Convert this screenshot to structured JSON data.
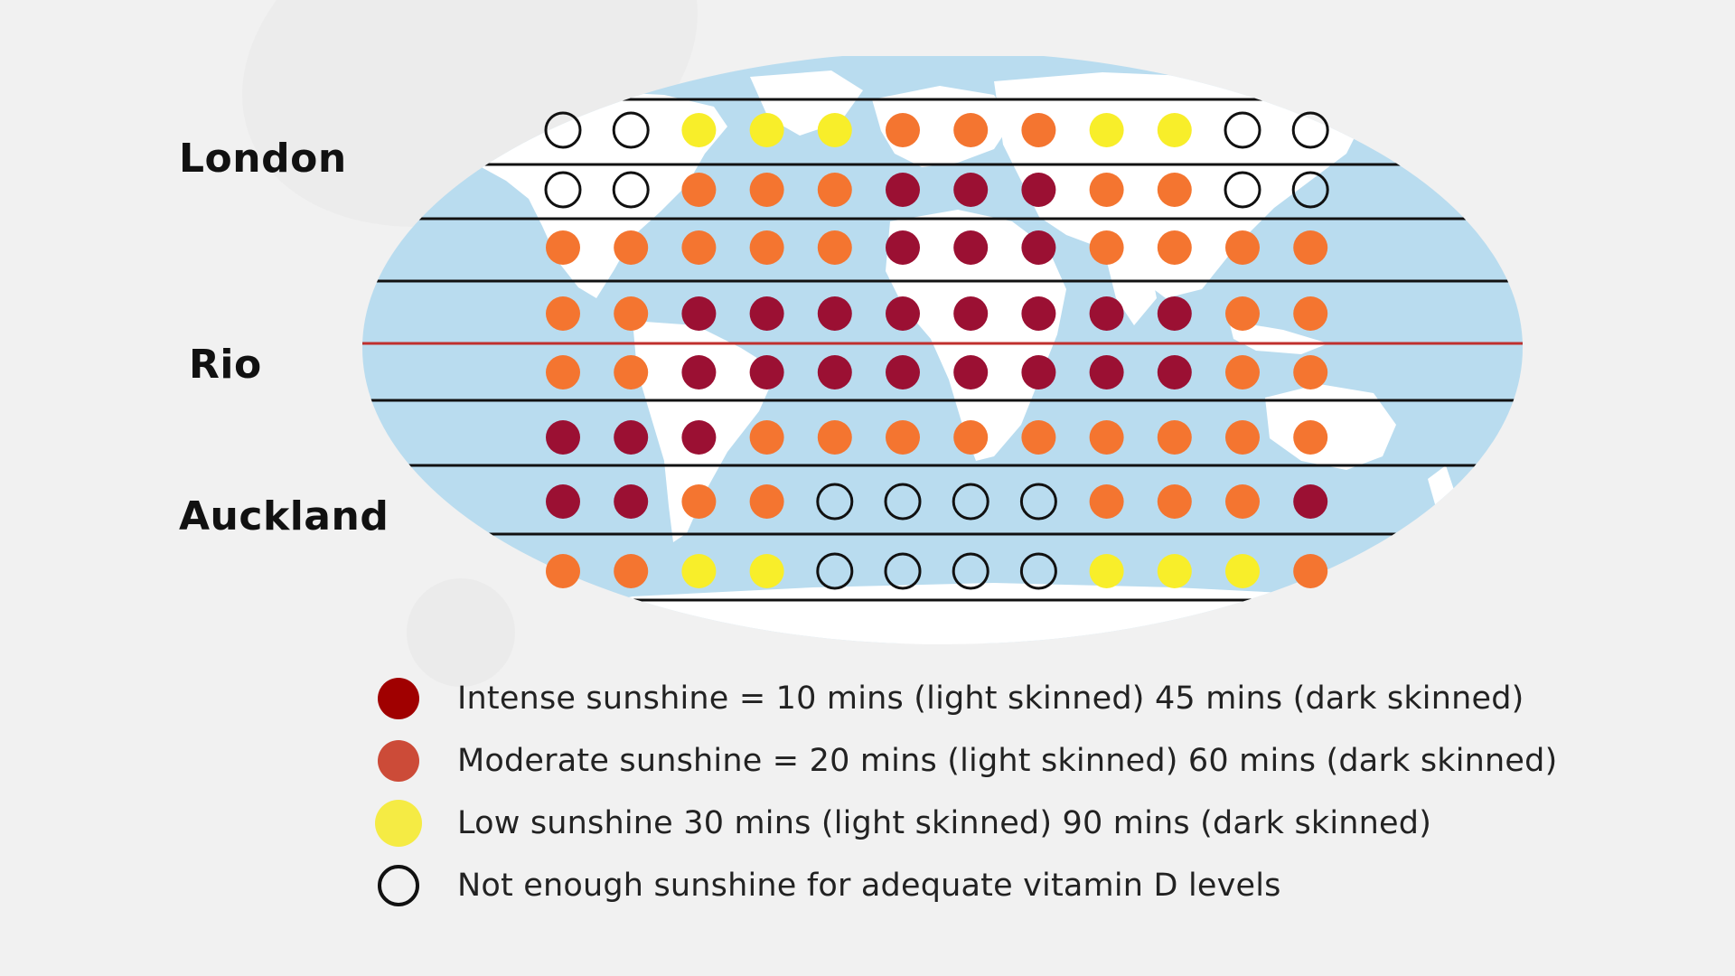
{
  "cities": {
    "london": "London",
    "rio": "Rio",
    "auckland": "Auckland"
  },
  "colors": {
    "intense": "#9b1033",
    "moderate": "#f47530",
    "low": "#f8ee2a",
    "none": "none",
    "ocean": "#b9dcef",
    "land": "#ffffff",
    "band_line": "#111111",
    "equator": "#c0302e",
    "legend_intense": "#a00000",
    "legend_moderate": "#cc4b38",
    "legend_low": "#f5eb44"
  },
  "grid": {
    "columns": 12,
    "rows": [
      [
        "N",
        "N",
        "L",
        "L",
        "L",
        "M",
        "M",
        "M",
        "L",
        "L",
        "N",
        "N"
      ],
      [
        "N",
        "N",
        "M",
        "M",
        "M",
        "I",
        "I",
        "I",
        "M",
        "M",
        "N",
        "N"
      ],
      [
        "M",
        "M",
        "M",
        "M",
        "M",
        "I",
        "I",
        "I",
        "M",
        "M",
        "M",
        "M"
      ],
      [
        "M",
        "M",
        "I",
        "I",
        "I",
        "I",
        "I",
        "I",
        "I",
        "I",
        "M",
        "M"
      ],
      [
        "M",
        "M",
        "I",
        "I",
        "I",
        "I",
        "I",
        "I",
        "I",
        "I",
        "M",
        "M"
      ],
      [
        "I",
        "I",
        "I",
        "M",
        "M",
        "M",
        "M",
        "M",
        "M",
        "M",
        "M",
        "M"
      ],
      [
        "I",
        "I",
        "M",
        "M",
        "N",
        "N",
        "N",
        "N",
        "M",
        "M",
        "M",
        "I"
      ],
      [
        "M",
        "M",
        "L",
        "L",
        "N",
        "N",
        "N",
        "N",
        "L",
        "L",
        "L",
        "M"
      ]
    ],
    "key": {
      "I": "intense",
      "M": "moderate",
      "L": "low",
      "N": "none"
    }
  },
  "legend": [
    {
      "level": "intense",
      "label": "Intense sunshine = 10 mins (light skinned) 45 mins (dark skinned)"
    },
    {
      "level": "moderate",
      "label": "Moderate sunshine = 20 mins (light skinned) 60 mins (dark skinned)"
    },
    {
      "level": "low",
      "label": "Low sunshine 30 mins (light skinned) 90 mins (dark skinned)"
    },
    {
      "level": "none",
      "label": "Not enough sunshine for adequate vitamin D levels"
    }
  ]
}
